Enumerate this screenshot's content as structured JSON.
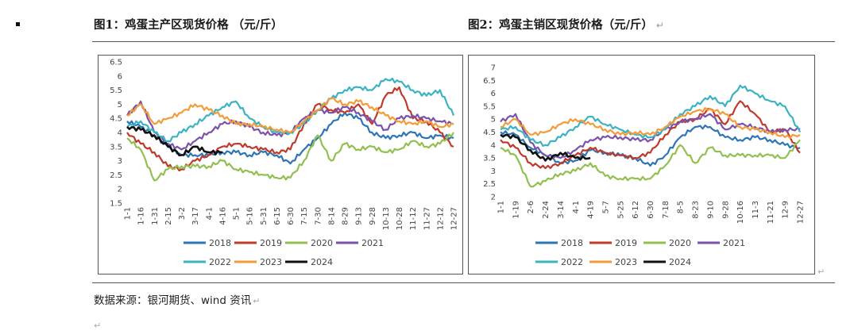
{
  "figure1": {
    "title": "图1：鸡蛋主产区现货价格 （元/斤）",
    "return_mark": ""
  },
  "figure2": {
    "title": "图2：鸡蛋主销区现货价格（元/斤）",
    "return_mark": "↵"
  },
  "source": {
    "text": "数据来源：银河期货、wind 资讯",
    "return_mark": "↵"
  },
  "paragraph_marks": [
    "↵",
    "↵"
  ],
  "chart_data": [
    {
      "type": "line",
      "title": "",
      "xlabel": "",
      "ylabel": "",
      "ylim": [
        1.5,
        6.5
      ],
      "yticks": [
        1.5,
        2,
        2.5,
        3,
        3.5,
        4,
        4.5,
        5,
        5.5,
        6,
        6.5
      ],
      "categories": [
        "1-1",
        "1-16",
        "1-31",
        "2-15",
        "3-2",
        "3-17",
        "4-1",
        "4-16",
        "5-1",
        "5-16",
        "5-31",
        "6-15",
        "6-30",
        "7-15",
        "7-30",
        "8-14",
        "8-29",
        "9-13",
        "9-28",
        "10-13",
        "10-28",
        "11-12",
        "11-27",
        "12-12",
        "12-27"
      ],
      "legend_position": "bottom",
      "grid": false,
      "series": [
        {
          "name": "2018",
          "color": "#2e75b6",
          "values": [
            4.4,
            4.2,
            3.9,
            3.5,
            3.2,
            3.2,
            3.2,
            3.3,
            3.3,
            3.2,
            3.3,
            3.2,
            2.9,
            3.4,
            3.8,
            4.3,
            4.7,
            4.5,
            4.0,
            3.8,
            3.9,
            4.0,
            3.8,
            3.9,
            3.8
          ]
        },
        {
          "name": "2019",
          "color": "#c0392b",
          "values": [
            4.0,
            3.6,
            3.3,
            2.8,
            2.7,
            3.0,
            3.2,
            3.5,
            3.6,
            3.5,
            3.4,
            3.3,
            3.4,
            4.3,
            5.0,
            4.8,
            4.7,
            5.0,
            4.3,
            5.3,
            5.6,
            4.5,
            4.4,
            4.0,
            3.5
          ]
        },
        {
          "name": "2020",
          "color": "#92c050",
          "values": [
            3.8,
            3.4,
            2.3,
            2.7,
            2.8,
            2.8,
            2.8,
            3.0,
            2.7,
            2.6,
            2.5,
            2.4,
            2.4,
            3.0,
            3.9,
            3.0,
            3.6,
            3.4,
            3.5,
            3.3,
            3.4,
            3.7,
            3.5,
            3.6,
            4.0
          ]
        },
        {
          "name": "2021",
          "color": "#7b52ab",
          "values": [
            4.6,
            5.1,
            4.0,
            3.6,
            3.4,
            3.7,
            4.0,
            4.3,
            4.4,
            4.2,
            4.0,
            3.9,
            4.0,
            4.5,
            4.8,
            4.7,
            4.9,
            4.7,
            4.4,
            4.1,
            4.5,
            4.6,
            4.5,
            4.4,
            4.3
          ]
        },
        {
          "name": "2022",
          "color": "#3bb3c3",
          "values": [
            4.2,
            4.4,
            4.0,
            3.7,
            4.0,
            4.3,
            4.6,
            4.9,
            5.1,
            4.5,
            4.2,
            4.0,
            4.0,
            4.3,
            4.8,
            5.2,
            5.5,
            5.6,
            5.5,
            5.9,
            5.8,
            5.5,
            5.3,
            5.5,
            4.6
          ]
        },
        {
          "name": "2023",
          "color": "#f39c3a",
          "values": [
            4.6,
            5.0,
            4.3,
            4.5,
            4.7,
            5.0,
            4.8,
            4.6,
            4.3,
            4.3,
            4.2,
            4.1,
            4.0,
            4.4,
            4.8,
            5.2,
            5.0,
            5.1,
            4.9,
            4.6,
            4.4,
            4.3,
            4.4,
            4.2,
            4.3
          ]
        },
        {
          "name": "2024",
          "color": "#111111",
          "values": [
            4.2,
            4.1,
            3.9,
            3.5,
            3.2,
            3.5,
            3.3,
            3.3,
            null,
            null,
            null,
            null,
            null,
            null,
            null,
            null,
            null,
            null,
            null,
            null,
            null,
            null,
            null,
            null,
            null
          ]
        }
      ]
    },
    {
      "type": "line",
      "title": "",
      "xlabel": "",
      "ylabel": "",
      "ylim": [
        2,
        7
      ],
      "yticks": [
        2,
        2.5,
        3,
        3.5,
        4,
        4.5,
        5,
        5.5,
        6,
        6.5,
        7
      ],
      "categories": [
        "1-1",
        "1-19",
        "2-6",
        "2-24",
        "3-14",
        "4-1",
        "4-19",
        "5-7",
        "5-25",
        "6-12",
        "6-30",
        "7-18",
        "8-5",
        "8-23",
        "9-10",
        "9-28",
        "10-16",
        "11-3",
        "11-21",
        "12-9",
        "12-27"
      ],
      "legend_position": "bottom",
      "grid": false,
      "series": [
        {
          "name": "2018",
          "color": "#2e75b6",
          "values": [
            4.5,
            4.4,
            3.9,
            3.6,
            3.3,
            3.4,
            3.8,
            3.7,
            3.6,
            3.5,
            3.2,
            3.6,
            4.3,
            4.7,
            4.7,
            4.3,
            4.2,
            4.3,
            4.2,
            4.0,
            3.9
          ]
        },
        {
          "name": "2019",
          "color": "#c0392b",
          "values": [
            4.2,
            3.9,
            3.3,
            3.1,
            3.3,
            3.6,
            3.9,
            3.7,
            3.6,
            3.5,
            3.7,
            4.4,
            4.9,
            5.0,
            5.4,
            4.8,
            5.7,
            5.2,
            4.5,
            4.6,
            3.7
          ]
        },
        {
          "name": "2020",
          "color": "#92c050",
          "values": [
            3.9,
            3.6,
            2.4,
            2.6,
            2.9,
            3.0,
            3.3,
            2.8,
            2.7,
            2.7,
            2.7,
            3.2,
            4.0,
            3.3,
            3.9,
            3.6,
            3.6,
            3.6,
            3.6,
            3.5,
            4.2
          ]
        },
        {
          "name": "2021",
          "color": "#7b52ab",
          "values": [
            4.9,
            5.2,
            4.1,
            3.6,
            3.5,
            3.8,
            4.2,
            4.3,
            4.3,
            4.2,
            4.2,
            4.6,
            4.9,
            5.0,
            5.2,
            4.6,
            4.8,
            4.7,
            4.5,
            4.6,
            4.6
          ]
        },
        {
          "name": "2022",
          "color": "#3bb3c3",
          "values": [
            4.6,
            4.7,
            4.2,
            4.0,
            4.3,
            4.7,
            5.1,
            4.8,
            4.6,
            4.4,
            4.3,
            4.6,
            5.2,
            5.5,
            5.9,
            5.5,
            6.3,
            6.0,
            5.7,
            5.5,
            4.5
          ]
        },
        {
          "name": "2023",
          "color": "#f39c3a",
          "values": [
            4.7,
            5.0,
            4.4,
            4.5,
            4.8,
            5.0,
            4.8,
            4.6,
            4.4,
            4.5,
            4.4,
            4.7,
            5.1,
            5.3,
            5.4,
            5.2,
            4.7,
            4.6,
            4.5,
            4.3,
            4.4
          ]
        },
        {
          "name": "2024",
          "color": "#111111",
          "values": [
            4.4,
            4.3,
            3.8,
            3.4,
            3.7,
            3.5,
            3.5,
            null,
            null,
            null,
            null,
            null,
            null,
            null,
            null,
            null,
            null,
            null,
            null,
            null,
            null
          ]
        }
      ]
    }
  ]
}
